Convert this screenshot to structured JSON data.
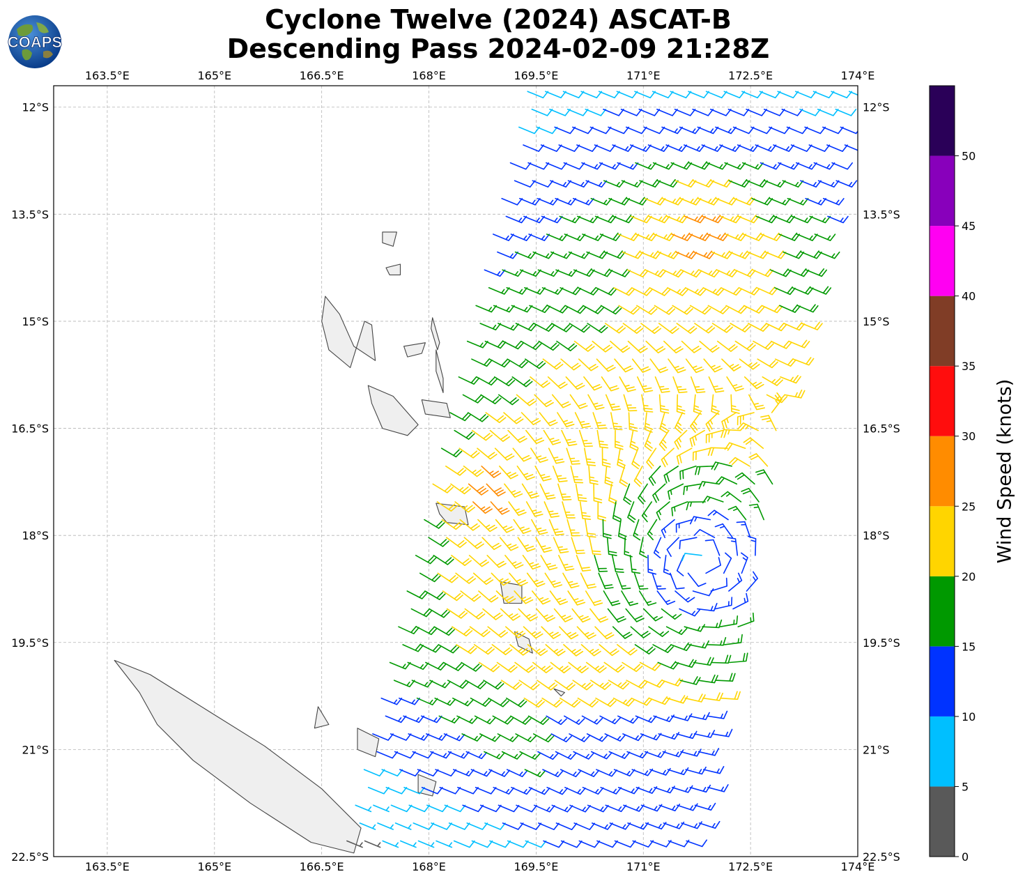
{
  "header": {
    "title_line1": "Cyclone Twelve (2024) ASCAT-B",
    "title_line2": "Descending Pass 2024-02-09 21:28Z",
    "logo_text": "COAPS"
  },
  "colors": {
    "land": "#efefef",
    "coast": "#444444",
    "grid": "#b4b4b4"
  },
  "chart_data": {
    "type": "wind-barb-map",
    "lon_range": [
      162.75,
      174.0
    ],
    "lat_range": [
      -22.5,
      -11.7
    ],
    "lon_ticks": [
      "163.5°E",
      "165°E",
      "166.5°E",
      "168°E",
      "169.5°E",
      "171°E",
      "172.5°E",
      "174°E"
    ],
    "lon_tick_values": [
      163.5,
      165.0,
      166.5,
      168.0,
      169.5,
      171.0,
      172.5,
      174.0
    ],
    "lat_ticks": [
      "12°S",
      "13.5°S",
      "15°S",
      "16.5°S",
      "18°S",
      "19.5°S",
      "21°S",
      "22.5°S"
    ],
    "lat_tick_values": [
      -12.0,
      -13.5,
      -15.0,
      -16.5,
      -18.0,
      -19.5,
      -21.0,
      -22.5
    ],
    "grid": true,
    "colorbar": {
      "label": "Wind Speed (knots)",
      "ticks": [
        "0",
        "5",
        "10",
        "15",
        "20",
        "25",
        "30",
        "35",
        "40",
        "45",
        "50"
      ],
      "tick_values": [
        0,
        5,
        10,
        15,
        20,
        25,
        30,
        35,
        40,
        45,
        50
      ],
      "max": 55,
      "colors": [
        "#595959",
        "#00bfff",
        "#0033ff",
        "#009900",
        "#ffd500",
        "#ff8c00",
        "#ff0d0d",
        "#803d26",
        "#ff00f2",
        "#8800bb",
        "#2a0058"
      ]
    },
    "swath": {
      "top_left": [
        169.4,
        -11.7
      ],
      "top_right": [
        174.0,
        -11.7
      ],
      "bottom_left": [
        166.8,
        -22.5
      ],
      "bottom_right": [
        171.7,
        -22.5
      ],
      "dlat": 0.25,
      "dlon": 0.25,
      "center": [
        171.8,
        -18.4
      ]
    },
    "islands": [
      {
        "name": "New Caledonia",
        "points": [
          [
            163.6,
            -19.75
          ],
          [
            164.1,
            -19.95
          ],
          [
            164.9,
            -20.45
          ],
          [
            165.7,
            -20.95
          ],
          [
            166.5,
            -21.55
          ],
          [
            167.05,
            -22.1
          ],
          [
            166.95,
            -22.45
          ],
          [
            166.35,
            -22.3
          ],
          [
            165.5,
            -21.75
          ],
          [
            164.7,
            -21.15
          ],
          [
            164.2,
            -20.65
          ],
          [
            163.95,
            -20.2
          ]
        ]
      },
      {
        "name": "Espiritu Santo",
        "points": [
          [
            166.55,
            -14.65
          ],
          [
            166.75,
            -14.9
          ],
          [
            166.95,
            -15.35
          ],
          [
            167.25,
            -15.55
          ],
          [
            167.2,
            -15.05
          ],
          [
            167.1,
            -15.0
          ],
          [
            166.9,
            -15.65
          ],
          [
            166.6,
            -15.4
          ],
          [
            166.5,
            -15.0
          ]
        ]
      },
      {
        "name": "Malakula",
        "points": [
          [
            167.15,
            -15.9
          ],
          [
            167.5,
            -16.05
          ],
          [
            167.85,
            -16.45
          ],
          [
            167.7,
            -16.6
          ],
          [
            167.35,
            -16.5
          ],
          [
            167.2,
            -16.15
          ]
        ]
      },
      {
        "name": "Efate",
        "points": [
          [
            168.1,
            -17.55
          ],
          [
            168.5,
            -17.6
          ],
          [
            168.55,
            -17.85
          ],
          [
            168.25,
            -17.82
          ],
          [
            168.15,
            -17.7
          ]
        ]
      },
      {
        "name": "Erromango",
        "points": [
          [
            169.0,
            -18.65
          ],
          [
            169.3,
            -18.7
          ],
          [
            169.3,
            -18.95
          ],
          [
            169.05,
            -18.95
          ]
        ]
      },
      {
        "name": "Tanna",
        "points": [
          [
            169.2,
            -19.35
          ],
          [
            169.4,
            -19.45
          ],
          [
            169.45,
            -19.65
          ],
          [
            169.25,
            -19.55
          ]
        ]
      },
      {
        "name": "Ambrym",
        "points": [
          [
            167.9,
            -16.1
          ],
          [
            168.25,
            -16.15
          ],
          [
            168.3,
            -16.35
          ],
          [
            167.95,
            -16.3
          ]
        ]
      },
      {
        "name": "Pentecost",
        "points": [
          [
            168.1,
            -15.4
          ],
          [
            168.2,
            -15.8
          ],
          [
            168.2,
            -16.0
          ],
          [
            168.1,
            -15.7
          ]
        ]
      },
      {
        "name": "Maewo",
        "points": [
          [
            168.05,
            -14.95
          ],
          [
            168.15,
            -15.3
          ],
          [
            168.12,
            -15.4
          ],
          [
            168.03,
            -15.1
          ]
        ]
      },
      {
        "name": "Aoba",
        "points": [
          [
            167.65,
            -15.35
          ],
          [
            167.95,
            -15.3
          ],
          [
            167.9,
            -15.45
          ],
          [
            167.7,
            -15.5
          ]
        ]
      },
      {
        "name": "Gaua",
        "points": [
          [
            167.4,
            -14.25
          ],
          [
            167.6,
            -14.2
          ],
          [
            167.6,
            -14.35
          ],
          [
            167.45,
            -14.35
          ]
        ]
      },
      {
        "name": "Vanua Lava",
        "points": [
          [
            167.35,
            -13.75
          ],
          [
            167.55,
            -13.75
          ],
          [
            167.5,
            -13.95
          ],
          [
            167.35,
            -13.9
          ]
        ]
      },
      {
        "name": "Lifou",
        "points": [
          [
            167.0,
            -20.7
          ],
          [
            167.3,
            -20.85
          ],
          [
            167.25,
            -21.1
          ],
          [
            167.0,
            -21.0
          ]
        ]
      },
      {
        "name": "Mare",
        "points": [
          [
            167.85,
            -21.35
          ],
          [
            168.1,
            -21.45
          ],
          [
            168.05,
            -21.65
          ],
          [
            167.85,
            -21.6
          ]
        ]
      },
      {
        "name": "Ouvea",
        "points": [
          [
            166.45,
            -20.4
          ],
          [
            166.6,
            -20.65
          ],
          [
            166.4,
            -20.7
          ]
        ]
      },
      {
        "name": "Aneityum",
        "points": [
          [
            169.75,
            -20.15
          ],
          [
            169.9,
            -20.2
          ],
          [
            169.85,
            -20.25
          ]
        ]
      }
    ]
  }
}
